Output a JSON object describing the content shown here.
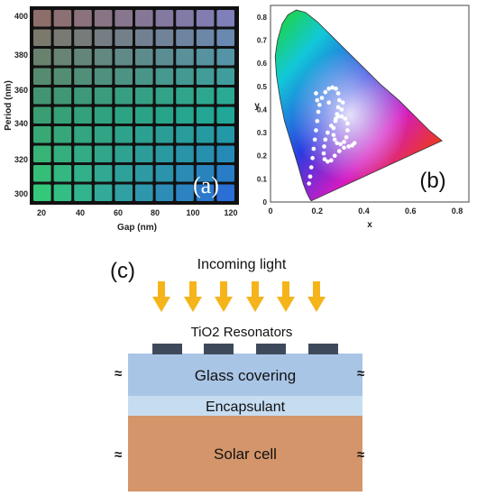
{
  "panel_a": {
    "label": "(a)",
    "y_title": "Period (nm)",
    "x_title": "Gap (nm)",
    "y_ticks": [
      "400",
      "380",
      "360",
      "340",
      "320",
      "300"
    ],
    "x_ticks": [
      "20",
      "40",
      "60",
      "80",
      "100",
      "120"
    ],
    "rows": 10,
    "cols": 10,
    "palette": {
      "top_left": "#8e6e6a",
      "top_right": "#7f7fb9",
      "mid_left": "#3a9a72",
      "mid_right": "#1fae8f",
      "bottom_left": "#34c87a",
      "bottom_right": "#2a6fd6"
    }
  },
  "chart_data": {
    "type": "scatter",
    "title": "",
    "xlabel": "x",
    "ylabel": "y",
    "xlim": [
      0,
      0.85
    ],
    "ylim": [
      0,
      0.85
    ],
    "x_ticks": [
      "0",
      "0.2",
      "0.4",
      "0.6",
      "0.8"
    ],
    "y_ticks": [
      "0",
      "0.1",
      "0.2",
      "0.3",
      "0.4",
      "0.5",
      "0.6",
      "0.7",
      "0.8"
    ],
    "gamut_color_stops": [
      "#1fd62a",
      "#12c8d8",
      "#2a3ce0",
      "#d21ac4",
      "#ee3a1a",
      "#e9d21a",
      "#7be12a"
    ],
    "points": [
      [
        0.165,
        0.08
      ],
      [
        0.17,
        0.11
      ],
      [
        0.175,
        0.15
      ],
      [
        0.18,
        0.19
      ],
      [
        0.185,
        0.23
      ],
      [
        0.19,
        0.27
      ],
      [
        0.195,
        0.31
      ],
      [
        0.2,
        0.35
      ],
      [
        0.205,
        0.39
      ],
      [
        0.21,
        0.42
      ],
      [
        0.22,
        0.45
      ],
      [
        0.235,
        0.475
      ],
      [
        0.25,
        0.49
      ],
      [
        0.265,
        0.495
      ],
      [
        0.28,
        0.49
      ],
      [
        0.29,
        0.47
      ],
      [
        0.295,
        0.44
      ],
      [
        0.29,
        0.41
      ],
      [
        0.285,
        0.38
      ],
      [
        0.278,
        0.35
      ],
      [
        0.27,
        0.32
      ],
      [
        0.27,
        0.29
      ],
      [
        0.275,
        0.27
      ],
      [
        0.285,
        0.255
      ],
      [
        0.3,
        0.25
      ],
      [
        0.315,
        0.26
      ],
      [
        0.325,
        0.28
      ],
      [
        0.33,
        0.31
      ],
      [
        0.33,
        0.34
      ],
      [
        0.32,
        0.36
      ],
      [
        0.305,
        0.37
      ],
      [
        0.29,
        0.37
      ],
      [
        0.28,
        0.36
      ],
      [
        0.26,
        0.33
      ],
      [
        0.245,
        0.3
      ],
      [
        0.235,
        0.27
      ],
      [
        0.23,
        0.24
      ],
      [
        0.228,
        0.21
      ],
      [
        0.232,
        0.185
      ],
      [
        0.245,
        0.175
      ],
      [
        0.26,
        0.18
      ],
      [
        0.275,
        0.2
      ],
      [
        0.295,
        0.22
      ],
      [
        0.315,
        0.235
      ],
      [
        0.335,
        0.24
      ],
      [
        0.35,
        0.245
      ],
      [
        0.36,
        0.255
      ],
      [
        0.31,
        0.43
      ],
      [
        0.305,
        0.4
      ],
      [
        0.2,
        0.44
      ],
      [
        0.195,
        0.47
      ],
      [
        0.25,
        0.43
      ]
    ]
  },
  "panel_b": {
    "label": "(b)"
  },
  "panel_c": {
    "label": "(c)",
    "incoming_light": "Incoming light",
    "resonators": "TiO2 Resonators",
    "glass": "Glass covering",
    "encapsulant": "Encapsulant",
    "solar_cell": "Solar cell",
    "break_mark": "≈",
    "colors": {
      "arrow": "#f5b41a",
      "resonator": "#3e4a5c",
      "glass": "#a9c5e6",
      "encapsulant": "#c6ddf1",
      "solar": "#d4956a"
    }
  }
}
